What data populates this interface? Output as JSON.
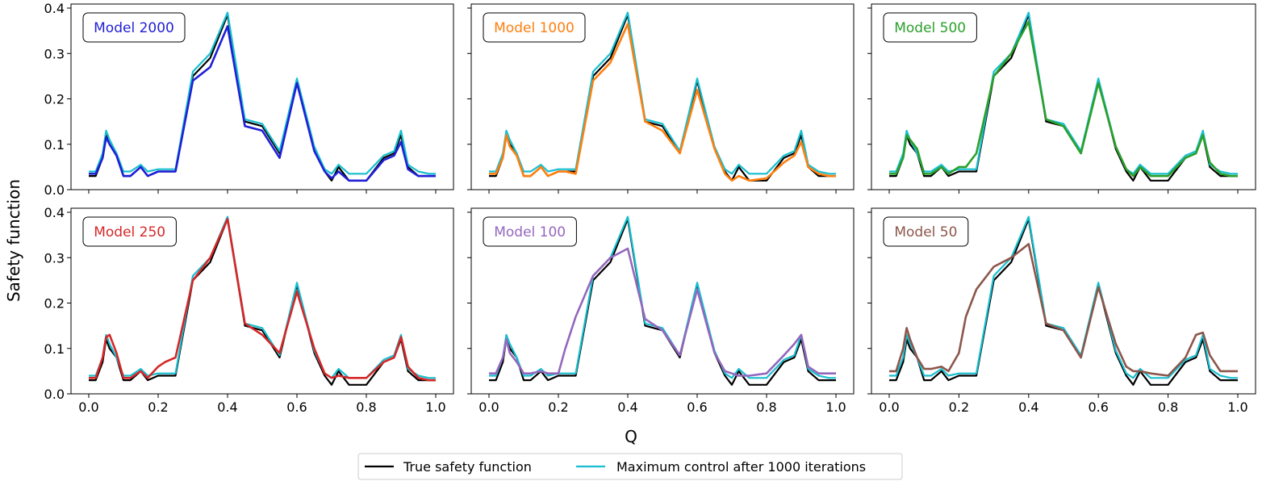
{
  "figure": {
    "ylabel": "Safety function",
    "xlabel": "Q",
    "legend": [
      {
        "label": "True safety function",
        "color": "#000000"
      },
      {
        "label": "Maximum control after 1000 iterations",
        "color": "#17becf"
      }
    ]
  },
  "chart_data": {
    "type": "line",
    "grid": false,
    "legend_position": "bottom-center",
    "xlim": [
      0.0,
      1.0
    ],
    "ylim": [
      0.0,
      0.4
    ],
    "x_ticks": [
      "0.0",
      "0.2",
      "0.4",
      "0.6",
      "0.8",
      "1.0"
    ],
    "y_ticks": [
      "0.0",
      "0.1",
      "0.2",
      "0.3",
      "0.4"
    ],
    "x": [
      0.0,
      0.02,
      0.04,
      0.05,
      0.06,
      0.08,
      0.1,
      0.12,
      0.15,
      0.17,
      0.2,
      0.22,
      0.25,
      0.3,
      0.35,
      0.4,
      0.45,
      0.5,
      0.55,
      0.6,
      0.65,
      0.68,
      0.7,
      0.72,
      0.75,
      0.8,
      0.85,
      0.88,
      0.9,
      0.92,
      0.95,
      0.98,
      1.0
    ],
    "true_safety_function": [
      0.03,
      0.03,
      0.07,
      0.12,
      0.1,
      0.08,
      0.03,
      0.03,
      0.05,
      0.03,
      0.04,
      0.04,
      0.04,
      0.25,
      0.29,
      0.385,
      0.15,
      0.14,
      0.08,
      0.24,
      0.09,
      0.04,
      0.02,
      0.05,
      0.02,
      0.02,
      0.07,
      0.08,
      0.12,
      0.05,
      0.03,
      0.03,
      0.03
    ],
    "max_control_1000_iterations": [
      0.04,
      0.04,
      0.08,
      0.13,
      0.11,
      0.08,
      0.04,
      0.04,
      0.055,
      0.04,
      0.045,
      0.045,
      0.045,
      0.26,
      0.3,
      0.39,
      0.155,
      0.145,
      0.085,
      0.245,
      0.095,
      0.045,
      0.035,
      0.055,
      0.035,
      0.035,
      0.075,
      0.085,
      0.13,
      0.055,
      0.04,
      0.035,
      0.035
    ],
    "panels": [
      {
        "label": "Model 2000",
        "color": "#1f1fd6",
        "values": [
          0.035,
          0.035,
          0.07,
          0.115,
          0.1,
          0.075,
          0.03,
          0.03,
          0.05,
          0.03,
          0.04,
          0.04,
          0.04,
          0.24,
          0.27,
          0.36,
          0.14,
          0.13,
          0.07,
          0.235,
          0.085,
          0.04,
          0.025,
          0.04,
          0.02,
          0.02,
          0.065,
          0.075,
          0.105,
          0.045,
          0.03,
          0.03,
          0.03
        ]
      },
      {
        "label": "Model 1000",
        "color": "#ff7f0e",
        "values": [
          0.035,
          0.035,
          0.07,
          0.12,
          0.095,
          0.075,
          0.03,
          0.03,
          0.05,
          0.03,
          0.04,
          0.04,
          0.035,
          0.24,
          0.28,
          0.365,
          0.15,
          0.13,
          0.08,
          0.22,
          0.09,
          0.035,
          0.02,
          0.03,
          0.02,
          0.025,
          0.06,
          0.075,
          0.105,
          0.05,
          0.035,
          0.03,
          0.03
        ]
      },
      {
        "label": "Model 500",
        "color": "#2ca02c",
        "values": [
          0.035,
          0.035,
          0.07,
          0.12,
          0.11,
          0.09,
          0.035,
          0.035,
          0.05,
          0.035,
          0.05,
          0.05,
          0.08,
          0.25,
          0.3,
          0.37,
          0.155,
          0.14,
          0.08,
          0.235,
          0.095,
          0.045,
          0.03,
          0.05,
          0.03,
          0.03,
          0.07,
          0.08,
          0.12,
          0.06,
          0.035,
          0.03,
          0.03
        ]
      },
      {
        "label": "Model 250",
        "color": "#d62728",
        "values": [
          0.035,
          0.035,
          0.08,
          0.125,
          0.13,
          0.09,
          0.035,
          0.035,
          0.05,
          0.035,
          0.06,
          0.07,
          0.08,
          0.25,
          0.3,
          0.385,
          0.155,
          0.13,
          0.09,
          0.225,
          0.1,
          0.045,
          0.035,
          0.04,
          0.035,
          0.035,
          0.07,
          0.08,
          0.125,
          0.06,
          0.035,
          0.03,
          0.03
        ]
      },
      {
        "label": "Model 100",
        "color": "#9467bd",
        "values": [
          0.045,
          0.045,
          0.08,
          0.12,
          0.09,
          0.07,
          0.045,
          0.045,
          0.05,
          0.045,
          0.045,
          0.1,
          0.17,
          0.26,
          0.3,
          0.32,
          0.165,
          0.14,
          0.085,
          0.23,
          0.09,
          0.05,
          0.045,
          0.04,
          0.04,
          0.045,
          0.085,
          0.11,
          0.13,
          0.06,
          0.045,
          0.045,
          0.045
        ]
      },
      {
        "label": "Model 50",
        "color": "#8c564b",
        "values": [
          0.05,
          0.05,
          0.1,
          0.145,
          0.12,
          0.08,
          0.055,
          0.055,
          0.06,
          0.05,
          0.09,
          0.17,
          0.23,
          0.28,
          0.3,
          0.33,
          0.155,
          0.14,
          0.08,
          0.235,
          0.11,
          0.06,
          0.05,
          0.05,
          0.045,
          0.04,
          0.08,
          0.13,
          0.135,
          0.085,
          0.05,
          0.05,
          0.05
        ]
      }
    ]
  }
}
